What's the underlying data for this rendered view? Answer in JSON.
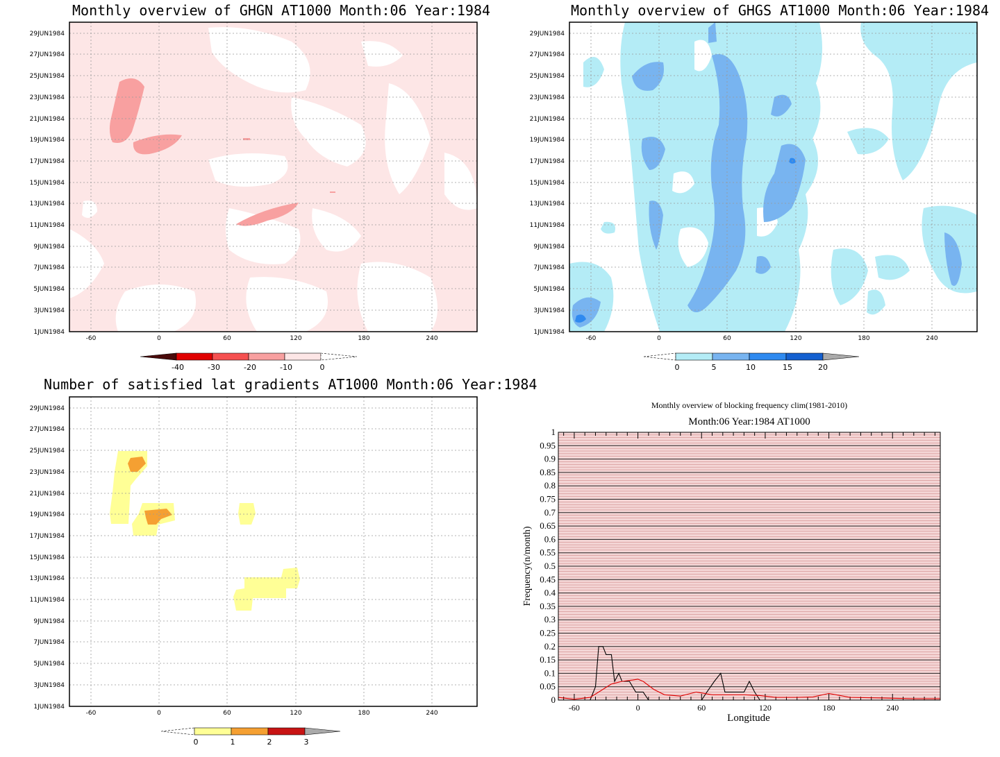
{
  "panels": {
    "ghgn": {
      "title": "Monthly overview of GHGN AT1000 Month:06 Year:1984",
      "colorbar": {
        "labels": [
          "-40",
          "-30",
          "-20",
          "-10",
          "0"
        ],
        "colors": [
          "#4a0a0a",
          "#e00000",
          "#f55050",
          "#f8a0a0",
          "#fde6e6"
        ]
      }
    },
    "ghgs": {
      "title": "Monthly overview of GHGS AT1000 Month:06 Year:1984",
      "colorbar": {
        "labels": [
          "0",
          "5",
          "10",
          "15",
          "20"
        ],
        "colors": [
          "#b4ecf6",
          "#78b4f0",
          "#2f8af0",
          "#1460d0",
          "#aaaaaa"
        ]
      }
    },
    "sat": {
      "title": "Number of satisfied lat gradients AT1000 Month:06 Year:1984",
      "colorbar": {
        "labels": [
          "0",
          "1",
          "2",
          "3"
        ],
        "colors": [
          "#ffff96",
          "#f5a032",
          "#c81414",
          "#aaaaaa"
        ]
      }
    }
  },
  "map_axes": {
    "x_ticks": [
      "-60",
      "0",
      "60",
      "120",
      "180",
      "240"
    ],
    "y_ticks": [
      "29JUN1984",
      "27JUN1984",
      "25JUN1984",
      "23JUN1984",
      "21JUN1984",
      "19JUN1984",
      "17JUN1984",
      "15JUN1984",
      "13JUN1984",
      "11JUN1984",
      "9JUN1984",
      "7JUN1984",
      "5JUN1984",
      "3JUN1984",
      "1JUN1984"
    ]
  },
  "chart_data": {
    "type": "line",
    "title": "Monthly overview of blocking frequency clim(1981-2010)",
    "subtitle": "Month:06 Year:1984  AT1000",
    "xlabel": "Longitude",
    "ylabel": "Frequency(n/month)",
    "xlim": [
      -75,
      285
    ],
    "ylim": [
      0,
      1
    ],
    "x_ticks": [
      "-60",
      "0",
      "60",
      "120",
      "180",
      "240"
    ],
    "y_ticks": [
      "0",
      "0.05",
      "0.1",
      "0.15",
      "0.2",
      "0.25",
      "0.3",
      "0.35",
      "0.4",
      "0.45",
      "0.5",
      "0.55",
      "0.6",
      "0.65",
      "0.7",
      "0.75",
      "0.8",
      "0.85",
      "0.9",
      "0.95",
      "1"
    ],
    "grid": true,
    "series": [
      {
        "color": "#000000",
        "x": [
          -75,
          -45,
          -40,
          -37,
          -33,
          -30,
          -25,
          -22,
          -18,
          -15,
          -12,
          -8,
          -2,
          0,
          5,
          10,
          15,
          60,
          65,
          72,
          78,
          82,
          85,
          100,
          105,
          110,
          115,
          285
        ],
        "y": [
          0,
          0,
          0.05,
          0.2,
          0.2,
          0.17,
          0.17,
          0.07,
          0.1,
          0.07,
          0.07,
          0.07,
          0.03,
          0.03,
          0.03,
          0,
          0,
          0,
          0.03,
          0.07,
          0.1,
          0.03,
          0.03,
          0.03,
          0.07,
          0.03,
          0,
          0
        ]
      },
      {
        "color": "#e00000",
        "x": [
          -75,
          -60,
          -45,
          -35,
          -25,
          -15,
          -5,
          0,
          5,
          15,
          25,
          40,
          55,
          70,
          85,
          100,
          115,
          130,
          150,
          165,
          180,
          200,
          230,
          260,
          285
        ],
        "y": [
          0.01,
          0.003,
          0.01,
          0.035,
          0.06,
          0.07,
          0.075,
          0.078,
          0.07,
          0.04,
          0.02,
          0.015,
          0.03,
          0.02,
          0.02,
          0.02,
          0.017,
          0.01,
          0.01,
          0.012,
          0.025,
          0.01,
          0.008,
          0.005,
          0.005
        ]
      }
    ]
  }
}
